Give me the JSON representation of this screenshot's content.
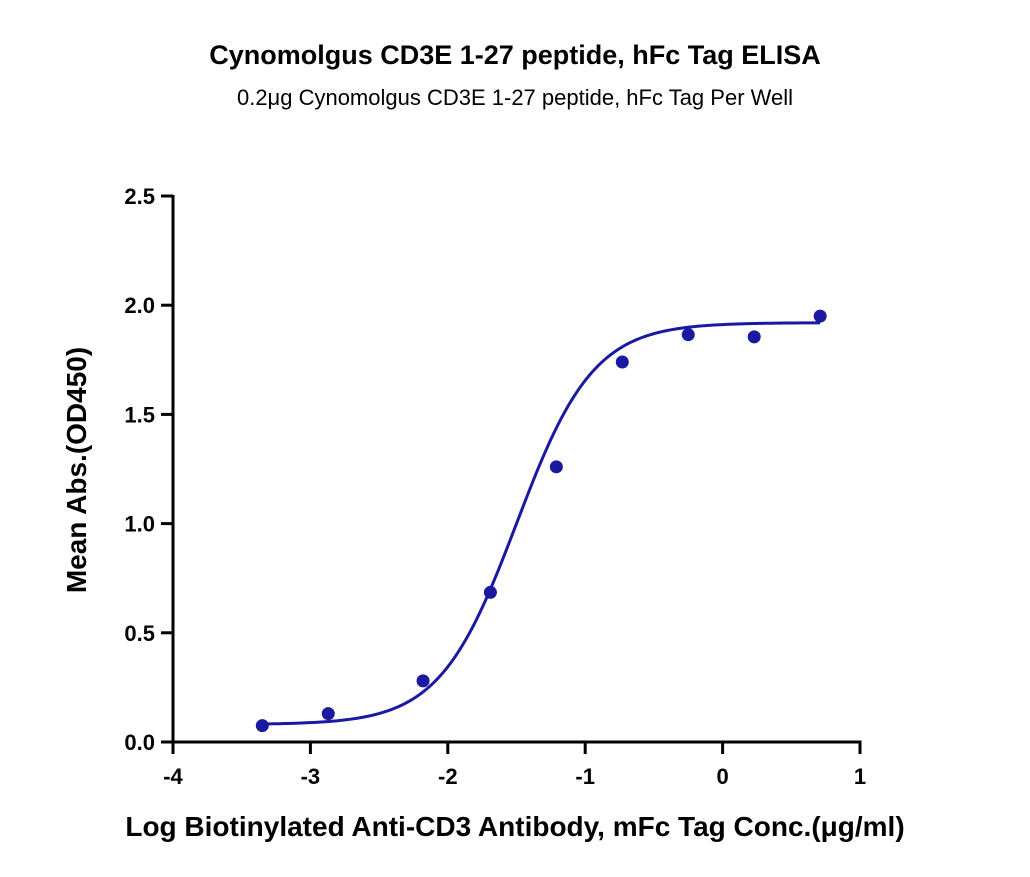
{
  "chart_data": {
    "type": "scatter",
    "title": "Cynomolgus CD3E 1-27 peptide, hFc Tag ELISA",
    "subtitle": "0.2μg Cynomolgus CD3E 1-27 peptide, hFc Tag Per Well",
    "xlabel": "Log Biotinylated Anti-CD3 Antibody, mFc Tag Conc.(μg/ml)",
    "ylabel": "Mean Abs.(OD450)",
    "xlim": [
      -4,
      1
    ],
    "ylim": [
      0,
      2.5
    ],
    "x_ticks": [
      -4,
      -3,
      -2,
      -1,
      0,
      1
    ],
    "x_tick_labels": [
      "-4",
      "-3",
      "-2",
      "-1",
      "0",
      "1"
    ],
    "y_ticks": [
      0,
      0.5,
      1,
      1.5,
      2,
      2.5
    ],
    "y_tick_labels": [
      "0.0",
      "0.5",
      "1.0",
      "1.5",
      "2.0",
      "2.5"
    ],
    "grid": false,
    "color": "#1a1aa0",
    "series": [
      {
        "points": [
          {
            "x": -3.35,
            "y": 0.075
          },
          {
            "x": -2.87,
            "y": 0.13
          },
          {
            "x": -2.18,
            "y": 0.28
          },
          {
            "x": -1.69,
            "y": 0.685
          },
          {
            "x": -1.21,
            "y": 1.26
          },
          {
            "x": -0.73,
            "y": 1.74
          },
          {
            "x": -0.25,
            "y": 1.865
          },
          {
            "x": 0.23,
            "y": 1.855
          },
          {
            "x": 0.71,
            "y": 1.95
          }
        ],
        "fit": {
          "model": "4PL",
          "bottom": 0.08,
          "top": 1.92,
          "log_ec50": -1.5,
          "hill": 1.55
        }
      }
    ]
  }
}
